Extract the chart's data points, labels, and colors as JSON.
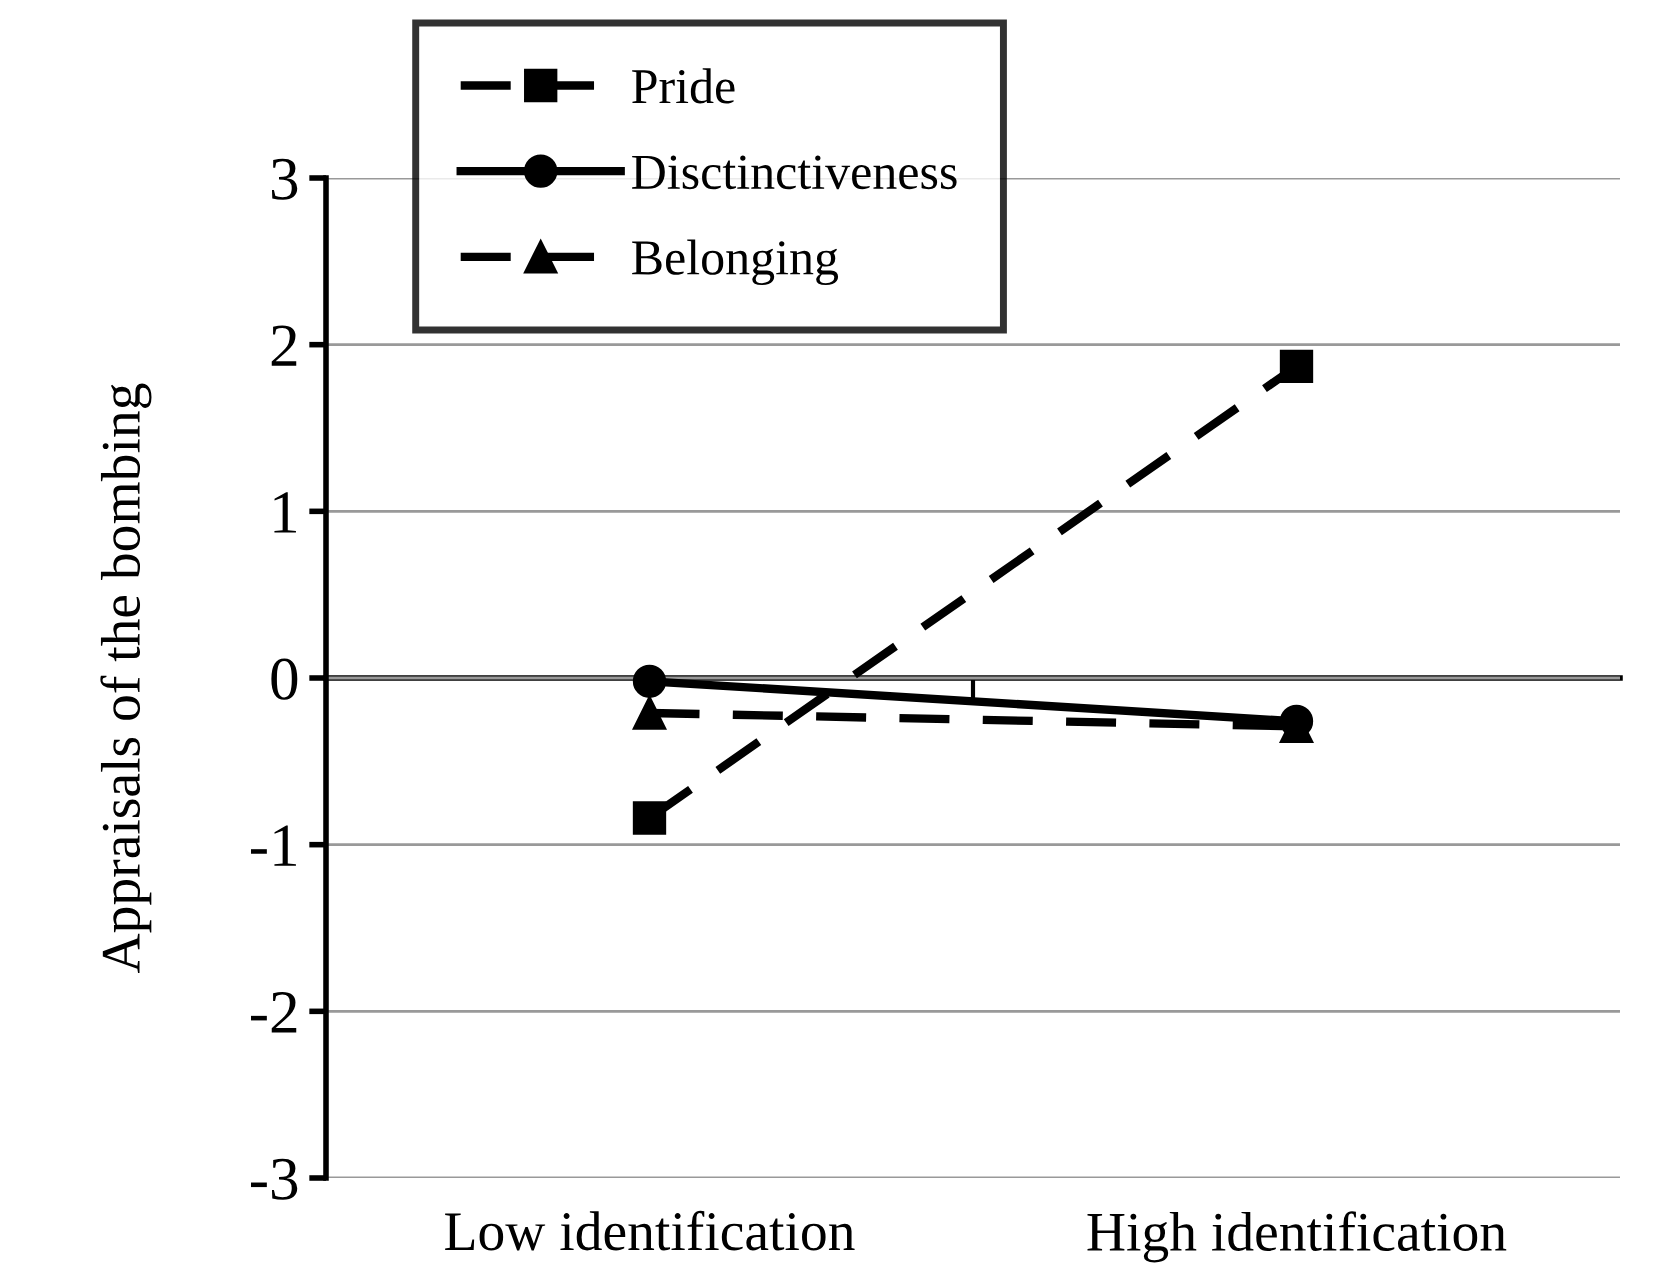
{
  "chart_data": {
    "type": "line",
    "ylabel": "Appraisals of the bombing",
    "categories": [
      "Low identification",
      "High identification"
    ],
    "ylim": [
      -3,
      3
    ],
    "yticks": [
      -3,
      -2,
      -1,
      0,
      1,
      2,
      3
    ],
    "grid": "y",
    "legend": "top left",
    "series": [
      {
        "name": "Pride",
        "color": "#000000",
        "values": [
          -0.84,
          1.87
        ],
        "marker": "square",
        "line_style": "dashed"
      },
      {
        "name": "Disctinctiveness",
        "color": "#000000",
        "values": [
          -0.02,
          -0.26
        ],
        "marker": "circle",
        "line_style": "solid"
      },
      {
        "name": "Belonging",
        "color": "#000000",
        "values": [
          -0.21,
          -0.29
        ],
        "marker": "triangle",
        "line_style": "dashed"
      }
    ]
  }
}
